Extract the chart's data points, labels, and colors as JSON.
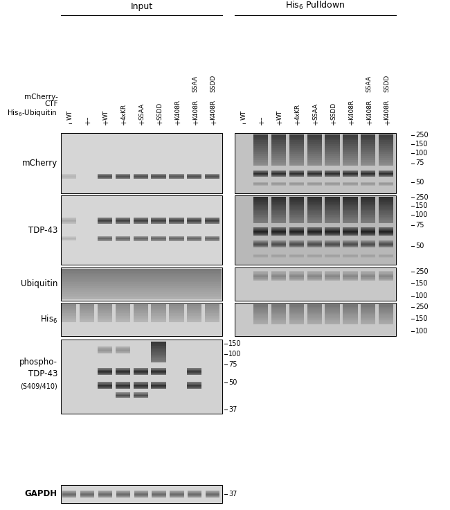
{
  "background_color": "#ffffff",
  "figure_width": 6.5,
  "figure_height": 7.36,
  "font_size_header": 9,
  "font_size_label": 8.5,
  "font_size_small": 7,
  "font_size_sign": 8,
  "header_input": "Input",
  "header_pulldown": "His$_6$ Pulldown",
  "input_col_labels": [
    "WT",
    "–",
    "WT",
    "4xKR",
    "SSAA",
    "SSDD",
    "K408R",
    "K408R",
    "K408R"
  ],
  "input_col_labels2": [
    "",
    "",
    "",
    "",
    "",
    "",
    "",
    "SSAA",
    "SSDD"
  ],
  "pd_col_labels": [
    "WT",
    "–",
    "WT",
    "4xKR",
    "SSAA",
    "SSDD",
    "K408R",
    "K408R",
    "K408R"
  ],
  "pd_col_labels2": [
    "",
    "",
    "",
    "",
    "",
    "",
    "",
    "SSAA",
    "SSDD"
  ],
  "input_signs": [
    "–",
    "+",
    "+",
    "+",
    "+",
    "+",
    "+",
    "+",
    "+"
  ],
  "pd_signs": [
    "–",
    "+",
    "+",
    "+",
    "+",
    "+",
    "+",
    "+",
    "+"
  ],
  "row_labels": [
    "mCherry",
    "TDP-43",
    "Ubiquitin",
    "His$_6$",
    "phospho-\nTDP-43\n(S409/410)",
    "GAPDH"
  ],
  "mw1": {
    "250": 0.03,
    "150": 0.18,
    "100": 0.33,
    "75": 0.5,
    "50": 0.82
  },
  "mw2": {
    "250": 0.03,
    "150": 0.15,
    "100": 0.28,
    "75": 0.43,
    "50": 0.73
  },
  "mw3": {
    "250": 0.12,
    "150": 0.48,
    "100": 0.85
  },
  "mw4": {
    "250": 0.12,
    "150": 0.48,
    "100": 0.85
  },
  "mw5": {
    "150": 0.06,
    "100": 0.2,
    "75": 0.34,
    "50": 0.58,
    "37": 0.94
  },
  "mw6": {
    "37": 0.5
  }
}
